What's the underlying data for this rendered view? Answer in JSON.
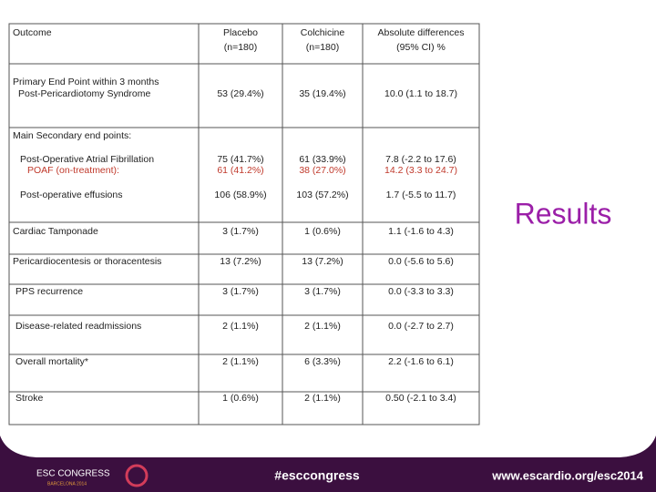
{
  "slide_title": "Results",
  "table": {
    "header": [
      "Outcome",
      "Placebo",
      "Colchicine",
      "Absolute differences"
    ],
    "subheader": [
      "(n=180)",
      "(n=180)",
      "(95% CI) %"
    ],
    "rows": [
      {
        "lines": [
          {
            "label": "Primary End Point within 3 months"
          },
          {
            "label": "Post-Pericardiotomy Syndrome",
            "cells": [
              "53 (29.4%)",
              "35 (19.4%)",
              "10.0 (1.1 to 18.7)"
            ]
          }
        ]
      },
      {
        "lines": [
          {
            "label": "Main Secondary end points:"
          },
          {
            "label": "Post-Operative Atrial Fibrillation",
            "cells": [
              "75 (41.7%)",
              "61 (33.9%)",
              "7.8 (-2.2 to 17.6)"
            ]
          },
          {
            "label": "POAF (on-treatment):",
            "color": "#c0392b",
            "cells": [
              "61 (41.2%)",
              "38 (27.0%)",
              "14.2 (3.3 to 24.7)"
            ]
          },
          {
            "label": "Post-operative effusions",
            "cells": [
              "106 (58.9%)",
              "103 (57.2%)",
              "1.7 (-5.5 to 11.7)"
            ]
          }
        ]
      },
      {
        "lines": [
          {
            "label": "Cardiac Tamponade",
            "cells": [
              "3 (1.7%)",
              "1 (0.6%)",
              "1.1 (-1.6 to 4.3)"
            ]
          }
        ]
      },
      {
        "lines": [
          {
            "label": "Pericardiocentesis or thoracentesis",
            "cells": [
              "13 (7.2%)",
              "13 (7.2%)",
              "0.0 (-5.6 to 5.6)"
            ]
          }
        ]
      },
      {
        "lines": [
          {
            "label": "PPS recurrence",
            "cells": [
              "3 (1.7%)",
              "3 (1.7%)",
              "0.0 (-3.3 to 3.3)"
            ]
          }
        ]
      },
      {
        "lines": [
          {
            "label": "Disease-related readmissions",
            "cells": [
              "2 (1.1%)",
              "2 (1.1%)",
              "0.0 (-2.7 to 2.7)"
            ]
          }
        ]
      },
      {
        "lines": [
          {
            "label": "Overall mortality*",
            "cells": [
              "2 (1.1%)",
              "6 (3.3%)",
              "2.2 (-1.6 to 6.1)"
            ]
          }
        ]
      },
      {
        "lines": [
          {
            "label": "Stroke",
            "cells": [
              "1 (0.6%)",
              "2 (1.1%)",
              "0.50 (-2.1 to 3.4)"
            ]
          }
        ]
      }
    ]
  },
  "footer": {
    "congress": "ESC CONGRESS",
    "place": "BARCELONA 2014",
    "hashtag": "#esccongress",
    "url": "www.escardio.org/esc2014"
  }
}
